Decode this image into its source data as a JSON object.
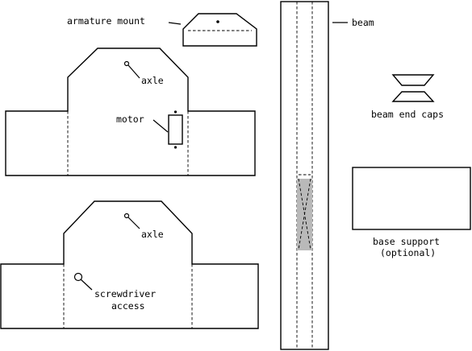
{
  "labels": {
    "armature_mount": "armature mount",
    "beam": "beam",
    "axle_upper": "axle",
    "motor": "motor",
    "beam_end_caps": "beam end caps",
    "axle_lower": "axle",
    "screwdriver_line1": "screwdriver",
    "screwdriver_line2": "access",
    "base_support_line1": "base support",
    "base_support_line2": "(optional)"
  },
  "colors": {
    "line": "#000000",
    "shaded_region": "#b9b9b9"
  }
}
